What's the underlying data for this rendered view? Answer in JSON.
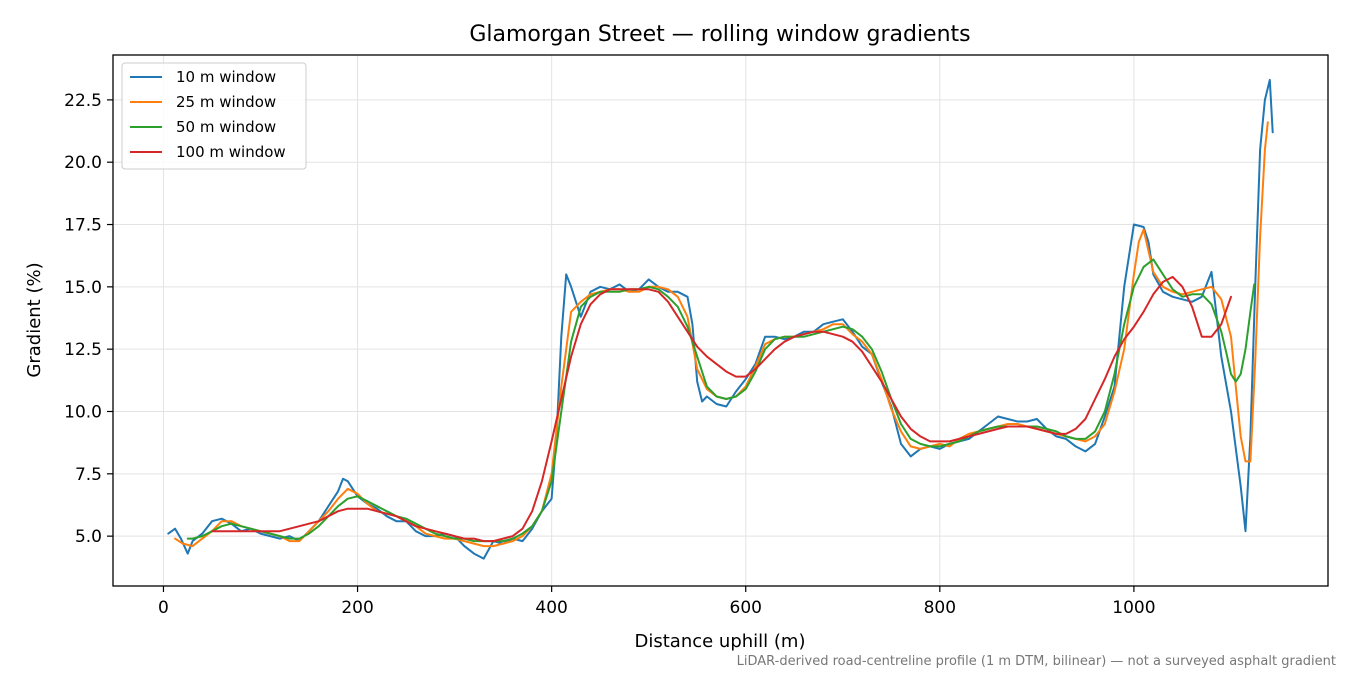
{
  "chart_data": {
    "type": "line",
    "title": "Glamorgan Street — rolling window gradients",
    "xlabel": "Distance uphill (m)",
    "ylabel": "Gradient (%)",
    "xlim": [
      -52,
      1200
    ],
    "ylim": [
      3.0,
      24.3
    ],
    "xticks": [
      0,
      200,
      400,
      600,
      800,
      1000
    ],
    "yticks": [
      5.0,
      7.5,
      10.0,
      12.5,
      15.0,
      17.5,
      20.0,
      22.5
    ],
    "xtick_labels": [
      "0",
      "200",
      "400",
      "600",
      "800",
      "1000"
    ],
    "ytick_labels": [
      "5.0",
      "7.5",
      "10.0",
      "12.5",
      "15.0",
      "17.5",
      "20.0",
      "22.5"
    ],
    "grid": true,
    "legend_position": "top-left",
    "footnote": "LiDAR-derived road-centreline profile (1 m DTM, bilinear) — not a surveyed asphalt gradient",
    "series": [
      {
        "name": "10 m window",
        "color": "#1f77b4",
        "x": [
          5,
          12,
          18,
          25,
          30,
          40,
          50,
          60,
          70,
          80,
          90,
          100,
          110,
          120,
          130,
          140,
          150,
          160,
          170,
          180,
          185,
          190,
          200,
          210,
          220,
          230,
          240,
          250,
          260,
          270,
          280,
          290,
          300,
          310,
          320,
          330,
          340,
          350,
          360,
          370,
          380,
          390,
          400,
          405,
          410,
          415,
          420,
          430,
          440,
          450,
          460,
          470,
          480,
          490,
          500,
          510,
          520,
          530,
          540,
          545,
          550,
          555,
          560,
          570,
          580,
          590,
          600,
          610,
          620,
          630,
          640,
          650,
          660,
          670,
          680,
          690,
          700,
          710,
          720,
          730,
          740,
          750,
          760,
          770,
          780,
          790,
          800,
          810,
          820,
          830,
          840,
          850,
          860,
          870,
          880,
          890,
          900,
          910,
          920,
          930,
          940,
          950,
          960,
          970,
          980,
          990,
          1000,
          1010,
          1015,
          1020,
          1030,
          1040,
          1050,
          1060,
          1070,
          1080,
          1090,
          1100,
          1110,
          1115,
          1120,
          1125,
          1130,
          1135,
          1140,
          1143
        ],
        "y": [
          5.1,
          5.3,
          4.9,
          4.3,
          4.8,
          5.1,
          5.6,
          5.7,
          5.5,
          5.2,
          5.3,
          5.1,
          5.0,
          4.9,
          5.0,
          4.8,
          5.2,
          5.6,
          6.2,
          6.8,
          7.3,
          7.2,
          6.6,
          6.3,
          6.1,
          5.8,
          5.6,
          5.6,
          5.2,
          5.0,
          5.0,
          5.1,
          5.0,
          4.6,
          4.3,
          4.1,
          4.8,
          4.7,
          4.9,
          4.8,
          5.3,
          6.0,
          6.5,
          9.0,
          13.0,
          15.5,
          15.0,
          13.8,
          14.8,
          15.0,
          14.9,
          15.1,
          14.8,
          14.9,
          15.3,
          15.0,
          14.8,
          14.8,
          14.6,
          13.5,
          11.2,
          10.4,
          10.6,
          10.3,
          10.2,
          10.8,
          11.3,
          11.9,
          13.0,
          13.0,
          12.9,
          13.0,
          13.2,
          13.2,
          13.5,
          13.6,
          13.7,
          13.2,
          12.6,
          12.3,
          11.2,
          10.2,
          8.7,
          8.2,
          8.5,
          8.6,
          8.5,
          8.7,
          8.8,
          8.9,
          9.2,
          9.5,
          9.8,
          9.7,
          9.6,
          9.6,
          9.7,
          9.3,
          9.0,
          8.9,
          8.6,
          8.4,
          8.7,
          9.8,
          11.0,
          15.0,
          17.5,
          17.4,
          16.8,
          15.5,
          14.8,
          14.6,
          14.5,
          14.4,
          14.6,
          15.6,
          12.2,
          10.0,
          7.0,
          5.2,
          9.0,
          15.0,
          20.5,
          22.5,
          23.3,
          21.2
        ]
      },
      {
        "name": "25 m window",
        "color": "#ff7f0e",
        "x": [
          12,
          20,
          30,
          40,
          50,
          60,
          70,
          80,
          90,
          100,
          110,
          120,
          130,
          140,
          150,
          160,
          170,
          180,
          190,
          200,
          210,
          220,
          230,
          240,
          250,
          260,
          270,
          280,
          290,
          300,
          310,
          320,
          330,
          340,
          350,
          360,
          370,
          380,
          390,
          400,
          410,
          420,
          430,
          440,
          450,
          460,
          470,
          480,
          490,
          500,
          510,
          520,
          530,
          540,
          550,
          560,
          570,
          580,
          590,
          600,
          610,
          620,
          630,
          640,
          650,
          660,
          670,
          680,
          690,
          700,
          710,
          720,
          730,
          740,
          750,
          760,
          770,
          780,
          790,
          800,
          810,
          820,
          830,
          840,
          850,
          860,
          870,
          880,
          890,
          900,
          910,
          920,
          930,
          940,
          950,
          960,
          970,
          980,
          990,
          1000,
          1005,
          1010,
          1020,
          1030,
          1040,
          1050,
          1060,
          1070,
          1080,
          1090,
          1100,
          1105,
          1110,
          1115,
          1120,
          1125,
          1130,
          1135,
          1138
        ],
        "y": [
          4.9,
          4.7,
          4.6,
          4.9,
          5.2,
          5.6,
          5.6,
          5.4,
          5.3,
          5.2,
          5.1,
          5.0,
          4.8,
          4.8,
          5.2,
          5.6,
          6.0,
          6.5,
          6.9,
          6.7,
          6.3,
          6.0,
          5.9,
          5.8,
          5.6,
          5.4,
          5.1,
          5.0,
          4.9,
          4.9,
          4.8,
          4.7,
          4.6,
          4.6,
          4.7,
          4.8,
          5.0,
          5.4,
          6.0,
          7.5,
          11.0,
          14.0,
          14.4,
          14.7,
          14.8,
          14.9,
          14.9,
          14.8,
          14.8,
          15.0,
          15.0,
          14.9,
          14.6,
          13.8,
          11.7,
          10.9,
          10.6,
          10.5,
          10.6,
          11.0,
          11.8,
          12.7,
          12.9,
          13.0,
          13.0,
          13.1,
          13.2,
          13.3,
          13.5,
          13.5,
          13.1,
          12.8,
          12.3,
          11.3,
          10.1,
          9.2,
          8.6,
          8.5,
          8.6,
          8.7,
          8.6,
          8.9,
          9.1,
          9.2,
          9.3,
          9.4,
          9.5,
          9.5,
          9.4,
          9.3,
          9.2,
          9.1,
          9.0,
          8.9,
          8.8,
          9.0,
          9.5,
          10.8,
          12.5,
          15.5,
          16.8,
          17.3,
          15.6,
          15.0,
          14.8,
          14.7,
          14.8,
          14.9,
          15.0,
          14.5,
          13.0,
          11.0,
          9.0,
          8.0,
          8.0,
          12.0,
          17.0,
          20.5,
          21.6
        ]
      },
      {
        "name": "50 m window",
        "color": "#2ca02c",
        "x": [
          25,
          30,
          40,
          50,
          60,
          70,
          80,
          90,
          100,
          110,
          120,
          130,
          140,
          150,
          160,
          170,
          180,
          190,
          200,
          210,
          220,
          230,
          240,
          250,
          260,
          270,
          280,
          290,
          300,
          310,
          320,
          330,
          340,
          350,
          360,
          370,
          380,
          390,
          400,
          410,
          420,
          430,
          440,
          450,
          460,
          470,
          480,
          490,
          500,
          510,
          520,
          530,
          540,
          550,
          560,
          570,
          580,
          590,
          600,
          610,
          620,
          630,
          640,
          650,
          660,
          670,
          680,
          690,
          700,
          710,
          720,
          730,
          740,
          750,
          760,
          770,
          780,
          790,
          800,
          810,
          820,
          830,
          840,
          850,
          860,
          870,
          880,
          890,
          900,
          910,
          920,
          930,
          940,
          950,
          960,
          970,
          980,
          990,
          1000,
          1010,
          1020,
          1030,
          1040,
          1050,
          1060,
          1070,
          1080,
          1090,
          1095,
          1100,
          1105,
          1110,
          1115,
          1120,
          1124
        ],
        "y": [
          4.9,
          4.9,
          5.0,
          5.2,
          5.4,
          5.5,
          5.4,
          5.3,
          5.2,
          5.1,
          5.0,
          4.9,
          4.9,
          5.1,
          5.4,
          5.8,
          6.2,
          6.5,
          6.6,
          6.4,
          6.2,
          6.0,
          5.8,
          5.7,
          5.5,
          5.3,
          5.1,
          5.0,
          4.9,
          4.9,
          4.8,
          4.8,
          4.8,
          4.8,
          4.9,
          5.1,
          5.4,
          6.0,
          7.2,
          10.0,
          12.8,
          14.2,
          14.6,
          14.8,
          14.8,
          14.8,
          14.9,
          14.9,
          15.0,
          14.9,
          14.6,
          14.2,
          13.4,
          12.2,
          11.0,
          10.6,
          10.5,
          10.6,
          10.9,
          11.6,
          12.5,
          12.9,
          13.0,
          13.0,
          13.0,
          13.1,
          13.2,
          13.3,
          13.4,
          13.3,
          13.0,
          12.5,
          11.6,
          10.5,
          9.5,
          8.9,
          8.7,
          8.6,
          8.6,
          8.7,
          8.8,
          9.0,
          9.2,
          9.3,
          9.4,
          9.4,
          9.4,
          9.4,
          9.4,
          9.3,
          9.2,
          9.0,
          8.9,
          8.9,
          9.2,
          10.0,
          11.5,
          13.5,
          15.0,
          15.8,
          16.1,
          15.5,
          14.9,
          14.6,
          14.7,
          14.7,
          14.3,
          13.2,
          12.4,
          11.5,
          11.2,
          11.5,
          12.5,
          14.0,
          15.1
        ]
      },
      {
        "name": "100 m window",
        "color": "#d62728",
        "x": [
          50,
          60,
          70,
          80,
          90,
          100,
          110,
          120,
          130,
          140,
          150,
          160,
          170,
          180,
          190,
          200,
          210,
          220,
          230,
          240,
          250,
          260,
          270,
          280,
          290,
          300,
          310,
          320,
          330,
          340,
          350,
          360,
          370,
          380,
          390,
          400,
          410,
          420,
          430,
          440,
          450,
          460,
          470,
          480,
          490,
          500,
          510,
          520,
          530,
          540,
          550,
          560,
          570,
          580,
          590,
          600,
          610,
          620,
          630,
          640,
          650,
          660,
          670,
          680,
          690,
          700,
          710,
          720,
          730,
          740,
          750,
          760,
          770,
          780,
          790,
          800,
          810,
          820,
          830,
          840,
          850,
          860,
          870,
          880,
          890,
          900,
          910,
          920,
          930,
          940,
          950,
          960,
          970,
          980,
          990,
          1000,
          1010,
          1020,
          1030,
          1040,
          1050,
          1060,
          1070,
          1080,
          1090,
          1100
        ],
        "y": [
          5.2,
          5.2,
          5.2,
          5.2,
          5.2,
          5.2,
          5.2,
          5.2,
          5.3,
          5.4,
          5.5,
          5.6,
          5.8,
          6.0,
          6.1,
          6.1,
          6.1,
          6.0,
          5.9,
          5.8,
          5.6,
          5.4,
          5.3,
          5.2,
          5.1,
          5.0,
          4.9,
          4.9,
          4.8,
          4.8,
          4.9,
          5.0,
          5.3,
          6.0,
          7.2,
          8.8,
          10.5,
          12.2,
          13.5,
          14.3,
          14.7,
          14.9,
          14.9,
          14.9,
          14.9,
          14.9,
          14.8,
          14.4,
          13.8,
          13.2,
          12.6,
          12.2,
          11.9,
          11.6,
          11.4,
          11.4,
          11.7,
          12.1,
          12.5,
          12.8,
          13.0,
          13.1,
          13.2,
          13.2,
          13.1,
          13.0,
          12.8,
          12.4,
          11.8,
          11.2,
          10.5,
          9.8,
          9.3,
          9.0,
          8.8,
          8.8,
          8.8,
          8.9,
          9.0,
          9.1,
          9.2,
          9.3,
          9.4,
          9.4,
          9.4,
          9.3,
          9.2,
          9.1,
          9.1,
          9.3,
          9.7,
          10.5,
          11.3,
          12.2,
          12.9,
          13.4,
          14.0,
          14.7,
          15.2,
          15.4,
          15.0,
          14.2,
          13.0,
          13.0,
          13.5,
          14.6
        ]
      }
    ]
  }
}
